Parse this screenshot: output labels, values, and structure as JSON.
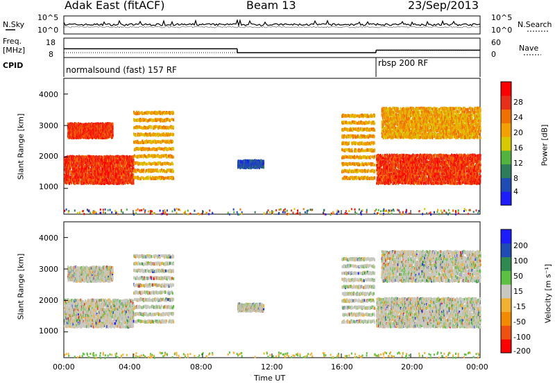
{
  "header": {
    "station": "Adak East (fitACF)",
    "beam": "Beam 13",
    "date": "23/Sep/2013"
  },
  "noise_panel": {
    "left_label": "N.Sky",
    "right_label": "N.Search",
    "left_ticks": [
      "10^5",
      "10^0"
    ],
    "right_ticks": [
      "10^5",
      "10^0"
    ]
  },
  "freq_panel": {
    "left_label_1": "Freq.",
    "left_label_2": "[MHz]",
    "left_ticks": [
      "18",
      "8"
    ],
    "right_label": "Nave",
    "right_ticks": [
      "60",
      "0"
    ]
  },
  "cpid_panel": {
    "label": "CPID",
    "segments": [
      {
        "start_hour": 0,
        "end_hour": 18,
        "text": "normalsound (fast) 157 RF"
      },
      {
        "start_hour": 18,
        "end_hour": 24,
        "text": "rbsp 200 RF"
      }
    ]
  },
  "x_axis": {
    "label": "Time UT",
    "ticks": [
      "00:00",
      "04:00",
      "08:00",
      "12:00",
      "16:00",
      "20:00",
      "00:00"
    ],
    "range_hours": [
      0,
      24
    ]
  },
  "power_panel": {
    "ylabel": "Slant Range [km]",
    "y_ticks": [
      "1000",
      "2000",
      "3000",
      "4000"
    ],
    "colorbar_label": "Power [dB]",
    "colorbar_ticks": [
      "4",
      "8",
      "12",
      "16",
      "20",
      "24",
      "28"
    ],
    "colors": [
      "#1c1cff",
      "#1e4bb4",
      "#2e7d5a",
      "#52b43c",
      "#d8c800",
      "#f4a000",
      "#f07000",
      "#e83018",
      "#ff0000"
    ]
  },
  "velocity_panel": {
    "ylabel": "Slant Range [km]",
    "y_ticks": [
      "1000",
      "2000",
      "3000",
      "4000"
    ],
    "colorbar_label": "Velocity [m s⁻¹]",
    "colorbar_ticks": [
      "200",
      "100",
      "50",
      "15",
      "-15",
      "-50",
      "-100",
      "-200"
    ],
    "colors": [
      "#1c1cff",
      "#1e4bb4",
      "#2e8a50",
      "#5cc040",
      "#c8c8c0",
      "#f4b030",
      "#f48a00",
      "#f05010",
      "#ff0000"
    ]
  },
  "chart_data": {
    "type": "heatmap",
    "x_range_hours": [
      0,
      24
    ],
    "y_range_km": [
      180,
      4500
    ],
    "noise_y_range_log": [
      0,
      5
    ],
    "freq_range_mhz": [
      8,
      18
    ],
    "nave_range": [
      0,
      60
    ],
    "frequency_mhz": [
      {
        "start_hour": 0,
        "end_hour": 10,
        "value": 12.5
      },
      {
        "start_hour": 10,
        "end_hour": 18,
        "value": 10.5
      },
      {
        "start_hour": 18,
        "end_hour": 24,
        "value": 11.8
      }
    ],
    "nave": [
      {
        "start_hour": 0,
        "end_hour": 18,
        "value": 15
      },
      {
        "start_hour": 18,
        "end_hour": 24,
        "value": 22
      }
    ],
    "echo_regions": [
      {
        "t0": 0.0,
        "t1": 4.0,
        "r0": 1150,
        "r1": 2050,
        "power": "high"
      },
      {
        "t0": 0.2,
        "t1": 2.8,
        "r0": 2600,
        "r1": 3050,
        "power": "high"
      },
      {
        "t0": 4.0,
        "t1": 6.3,
        "r0": 1300,
        "r1": 3600,
        "power": "medium"
      },
      {
        "t0": 10.0,
        "t1": 11.5,
        "r0": 1650,
        "r1": 1850,
        "power": "low"
      },
      {
        "t0": 16.0,
        "t1": 17.9,
        "r0": 1300,
        "r1": 3500,
        "power": "medium"
      },
      {
        "t0": 18.0,
        "t1": 24.0,
        "r0": 1150,
        "r1": 2100,
        "power": "high"
      },
      {
        "t0": 18.3,
        "t1": 24.0,
        "r0": 2600,
        "r1": 3600,
        "power": "medium"
      }
    ]
  }
}
